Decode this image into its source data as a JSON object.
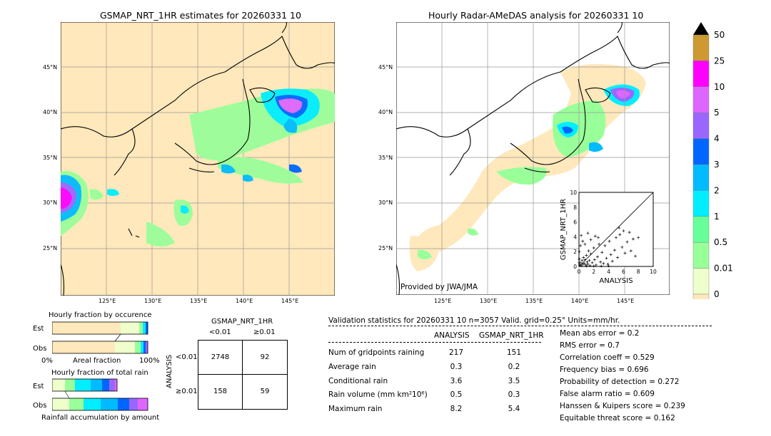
{
  "left_map": {
    "title": "GSMAP_NRT_1HR estimates for 20260331 10",
    "lat_labels": [
      "45°N",
      "40°N",
      "35°N",
      "30°N",
      "25°N"
    ],
    "lon_labels": [
      "125°E",
      "130°E",
      "135°E",
      "140°E",
      "145°E"
    ]
  },
  "right_map": {
    "title": "Hourly Radar-AMeDAS analysis for 20260331 10",
    "lat_labels": [
      "45°N",
      "40°N",
      "35°N",
      "30°N",
      "25°N"
    ],
    "lon_labels": [
      "125°E",
      "130°E",
      "135°E",
      "140°E",
      "145°E"
    ],
    "credit": "Provided by JWA/JMA"
  },
  "colorbar": {
    "labels": [
      "50",
      "25",
      "10",
      "5",
      "4",
      "3",
      "2",
      "1",
      "0.5",
      "0.01",
      "0"
    ],
    "colors": [
      "#cc9933",
      "#ff00ff",
      "#dd66ff",
      "#9966ff",
      "#0066ff",
      "#00bbff",
      "#00eeff",
      "#66ff99",
      "#99ff99",
      "#eeffcc",
      "#ffe8bb"
    ]
  },
  "occurrence": {
    "title": "Hourly fraction by occurence",
    "rows": [
      "Est",
      "Obs"
    ],
    "axis_left": "0%",
    "axis_mid": "Areal fraction",
    "axis_right": "100%"
  },
  "total_rain": {
    "title": "Hourly fraction of total rain",
    "rows": [
      "Est",
      "Obs"
    ],
    "footer": "Rainfall accumulation by amount"
  },
  "contingency": {
    "title": "GSMAP_NRT_1HR",
    "col_lt": "<0.01",
    "col_ge": "≥0.01",
    "row_axis": "ANALYSIS",
    "row_lt": "<0.01",
    "row_ge": "≥0.01",
    "cells": [
      "2748",
      "92",
      "158",
      "59"
    ]
  },
  "validation": {
    "header": "Validation statistics for 20260331 10  n=3057 Valid. grid=0.25° Units=mm/hr.",
    "col_analysis": "ANALYSIS",
    "col_gsmap": "GSMAP_NRT_1HR",
    "rows": [
      {
        "label": "Num of gridpoints raining",
        "analysis": "217",
        "gsmap": "151"
      },
      {
        "label": "Average rain",
        "analysis": "0.3",
        "gsmap": "0.2"
      },
      {
        "label": "Conditional rain",
        "analysis": "3.6",
        "gsmap": "3.5"
      },
      {
        "label": "Rain volume (mm km²10⁶)",
        "analysis": "0.5",
        "gsmap": "0.3"
      },
      {
        "label": "Maximum rain",
        "analysis": "8.2",
        "gsmap": "5.4"
      }
    ],
    "scores": [
      "Mean abs error =    0.2",
      "RMS error =    0.7",
      "Correlation coeff =  0.529",
      "Frequency bias =  0.696",
      "Probability of detection =  0.272",
      "False alarm ratio =  0.609",
      "Hanssen & Kuipers score =  0.239",
      "Equitable threat score =  0.162"
    ]
  },
  "chart_data": {
    "type": "scatter",
    "title": "",
    "xlabel": "ANALYSIS",
    "ylabel": "GSMAP_NRT_1HR",
    "xlim": [
      0,
      10
    ],
    "ylim": [
      0,
      10
    ],
    "x_ticks": [
      "0",
      "2",
      "4",
      "6",
      "8",
      "10"
    ],
    "y_ticks": [
      "0",
      "2",
      "4",
      "6",
      "8",
      "10"
    ],
    "points": [
      [
        0.1,
        0.2
      ],
      [
        0.2,
        0.5
      ],
      [
        0.3,
        0.1
      ],
      [
        0.4,
        0.8
      ],
      [
        0.5,
        0.3
      ],
      [
        0.6,
        1.2
      ],
      [
        0.7,
        0.4
      ],
      [
        0.8,
        0.9
      ],
      [
        0.9,
        0.2
      ],
      [
        1.0,
        1.5
      ],
      [
        1.1,
        0.6
      ],
      [
        1.2,
        0.3
      ],
      [
        1.3,
        2.1
      ],
      [
        1.4,
        0.8
      ],
      [
        1.5,
        0.1
      ],
      [
        1.6,
        1.7
      ],
      [
        1.8,
        0.5
      ],
      [
        2.0,
        2.5
      ],
      [
        2.1,
        0.9
      ],
      [
        2.3,
        0.2
      ],
      [
        2.5,
        1.3
      ],
      [
        2.7,
        3.0
      ],
      [
        2.9,
        0.6
      ],
      [
        3.1,
        1.9
      ],
      [
        3.3,
        0.4
      ],
      [
        3.5,
        2.8
      ],
      [
        3.7,
        1.1
      ],
      [
        3.9,
        0.3
      ],
      [
        4.1,
        3.4
      ],
      [
        4.3,
        1.6
      ],
      [
        4.5,
        0.7
      ],
      [
        4.8,
        2.2
      ],
      [
        5.0,
        3.9
      ],
      [
        5.2,
        1.2
      ],
      [
        5.5,
        4.3
      ],
      [
        5.8,
        2.6
      ],
      [
        6.0,
        4.8
      ],
      [
        6.2,
        1.8
      ],
      [
        6.5,
        3.3
      ],
      [
        6.8,
        4.6
      ],
      [
        7.0,
        2.1
      ],
      [
        7.3,
        3.7
      ],
      [
        7.6,
        1.4
      ],
      [
        8.0,
        3.9
      ],
      [
        0.2,
        2.8
      ],
      [
        0.5,
        3.4
      ],
      [
        0.3,
        4.2
      ],
      [
        0.8,
        3.0
      ],
      [
        1.2,
        4.5
      ],
      [
        1.6,
        3.6
      ],
      [
        2.2,
        4.1
      ],
      [
        2.6,
        3.9
      ],
      [
        1.0,
        0.05
      ],
      [
        2.0,
        0.05
      ],
      [
        3.0,
        0.05
      ],
      [
        4.0,
        0.05
      ],
      [
        0.05,
        1.0
      ],
      [
        0.05,
        2.0
      ],
      [
        0.05,
        0.5
      ],
      [
        5.4,
        5.2
      ]
    ]
  }
}
